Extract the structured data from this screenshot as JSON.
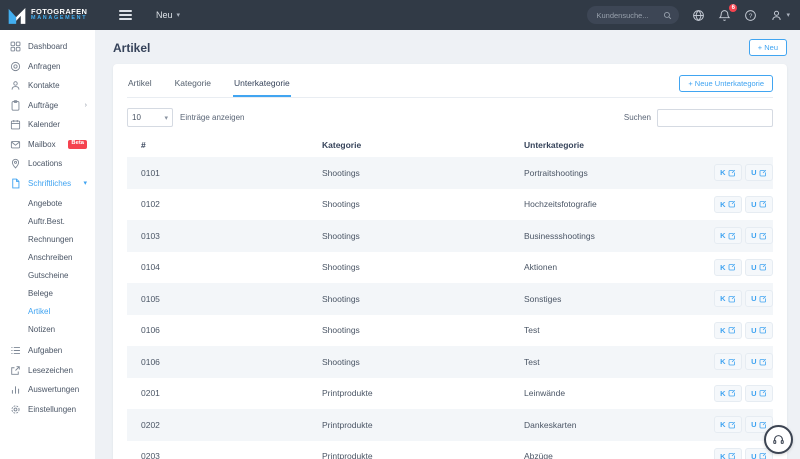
{
  "topbar": {
    "logo_line1": "FOTOGRAFEN",
    "logo_line2": "MANAGEMENT",
    "neu_label": "Neu",
    "search_placeholder": "Kundensuche...",
    "notification_count": "6"
  },
  "sidebar": {
    "items": [
      {
        "label": "Dashboard"
      },
      {
        "label": "Anfragen"
      },
      {
        "label": "Kontakte"
      },
      {
        "label": "Aufträge",
        "chevron": "›"
      },
      {
        "label": "Kalender"
      },
      {
        "label": "Mailbox",
        "badge": "Beta"
      },
      {
        "label": "Locations"
      },
      {
        "label": "Schriftliches",
        "chevron": "▾",
        "active": true
      }
    ],
    "sub_items": [
      {
        "label": "Angebote"
      },
      {
        "label": "Auftr.Best."
      },
      {
        "label": "Rechnungen"
      },
      {
        "label": "Anschreiben"
      },
      {
        "label": "Gutscheine"
      },
      {
        "label": "Belege"
      },
      {
        "label": "Artikel",
        "active": true
      },
      {
        "label": "Notizen"
      }
    ],
    "bottom_items": [
      {
        "label": "Aufgaben"
      },
      {
        "label": "Lesezeichen"
      },
      {
        "label": "Auswertungen"
      },
      {
        "label": "Einstellungen"
      }
    ]
  },
  "page": {
    "title": "Artikel",
    "new_button": "+ Neu"
  },
  "panel": {
    "tabs": [
      {
        "label": "Artikel"
      },
      {
        "label": "Kategorie"
      },
      {
        "label": "Unterkategorie",
        "active": true
      }
    ],
    "new_subcategory_button": "+ Neue Unterkategorie",
    "page_size": "10",
    "entries_label": "Einträge anzeigen",
    "search_label": "Suchen",
    "search_value": ""
  },
  "table": {
    "headers": [
      "#",
      "Kategorie",
      "Unterkategorie"
    ],
    "action_labels": {
      "kategorie": "K",
      "unterkategorie": "U"
    },
    "rows": [
      {
        "id": "0101",
        "kategorie": "Shootings",
        "unterkategorie": "Portraitshootings"
      },
      {
        "id": "0102",
        "kategorie": "Shootings",
        "unterkategorie": "Hochzeitsfotografie"
      },
      {
        "id": "0103",
        "kategorie": "Shootings",
        "unterkategorie": "Businessshootings"
      },
      {
        "id": "0104",
        "kategorie": "Shootings",
        "unterkategorie": "Aktionen"
      },
      {
        "id": "0105",
        "kategorie": "Shootings",
        "unterkategorie": "Sonstiges"
      },
      {
        "id": "0106",
        "kategorie": "Shootings",
        "unterkategorie": "Test"
      },
      {
        "id": "0106",
        "kategorie": "Shootings",
        "unterkategorie": "Test"
      },
      {
        "id": "0201",
        "kategorie": "Printprodukte",
        "unterkategorie": "Leinwände"
      },
      {
        "id": "0202",
        "kategorie": "Printprodukte",
        "unterkategorie": "Dankeskarten"
      },
      {
        "id": "0203",
        "kategorie": "Printprodukte",
        "unterkategorie": "Abzüge"
      }
    ]
  },
  "colors": {
    "accent": "#41a5f1",
    "topbar_bg": "#313a46",
    "badge_red": "#f5434f",
    "stripe": "#f3f6f9"
  }
}
